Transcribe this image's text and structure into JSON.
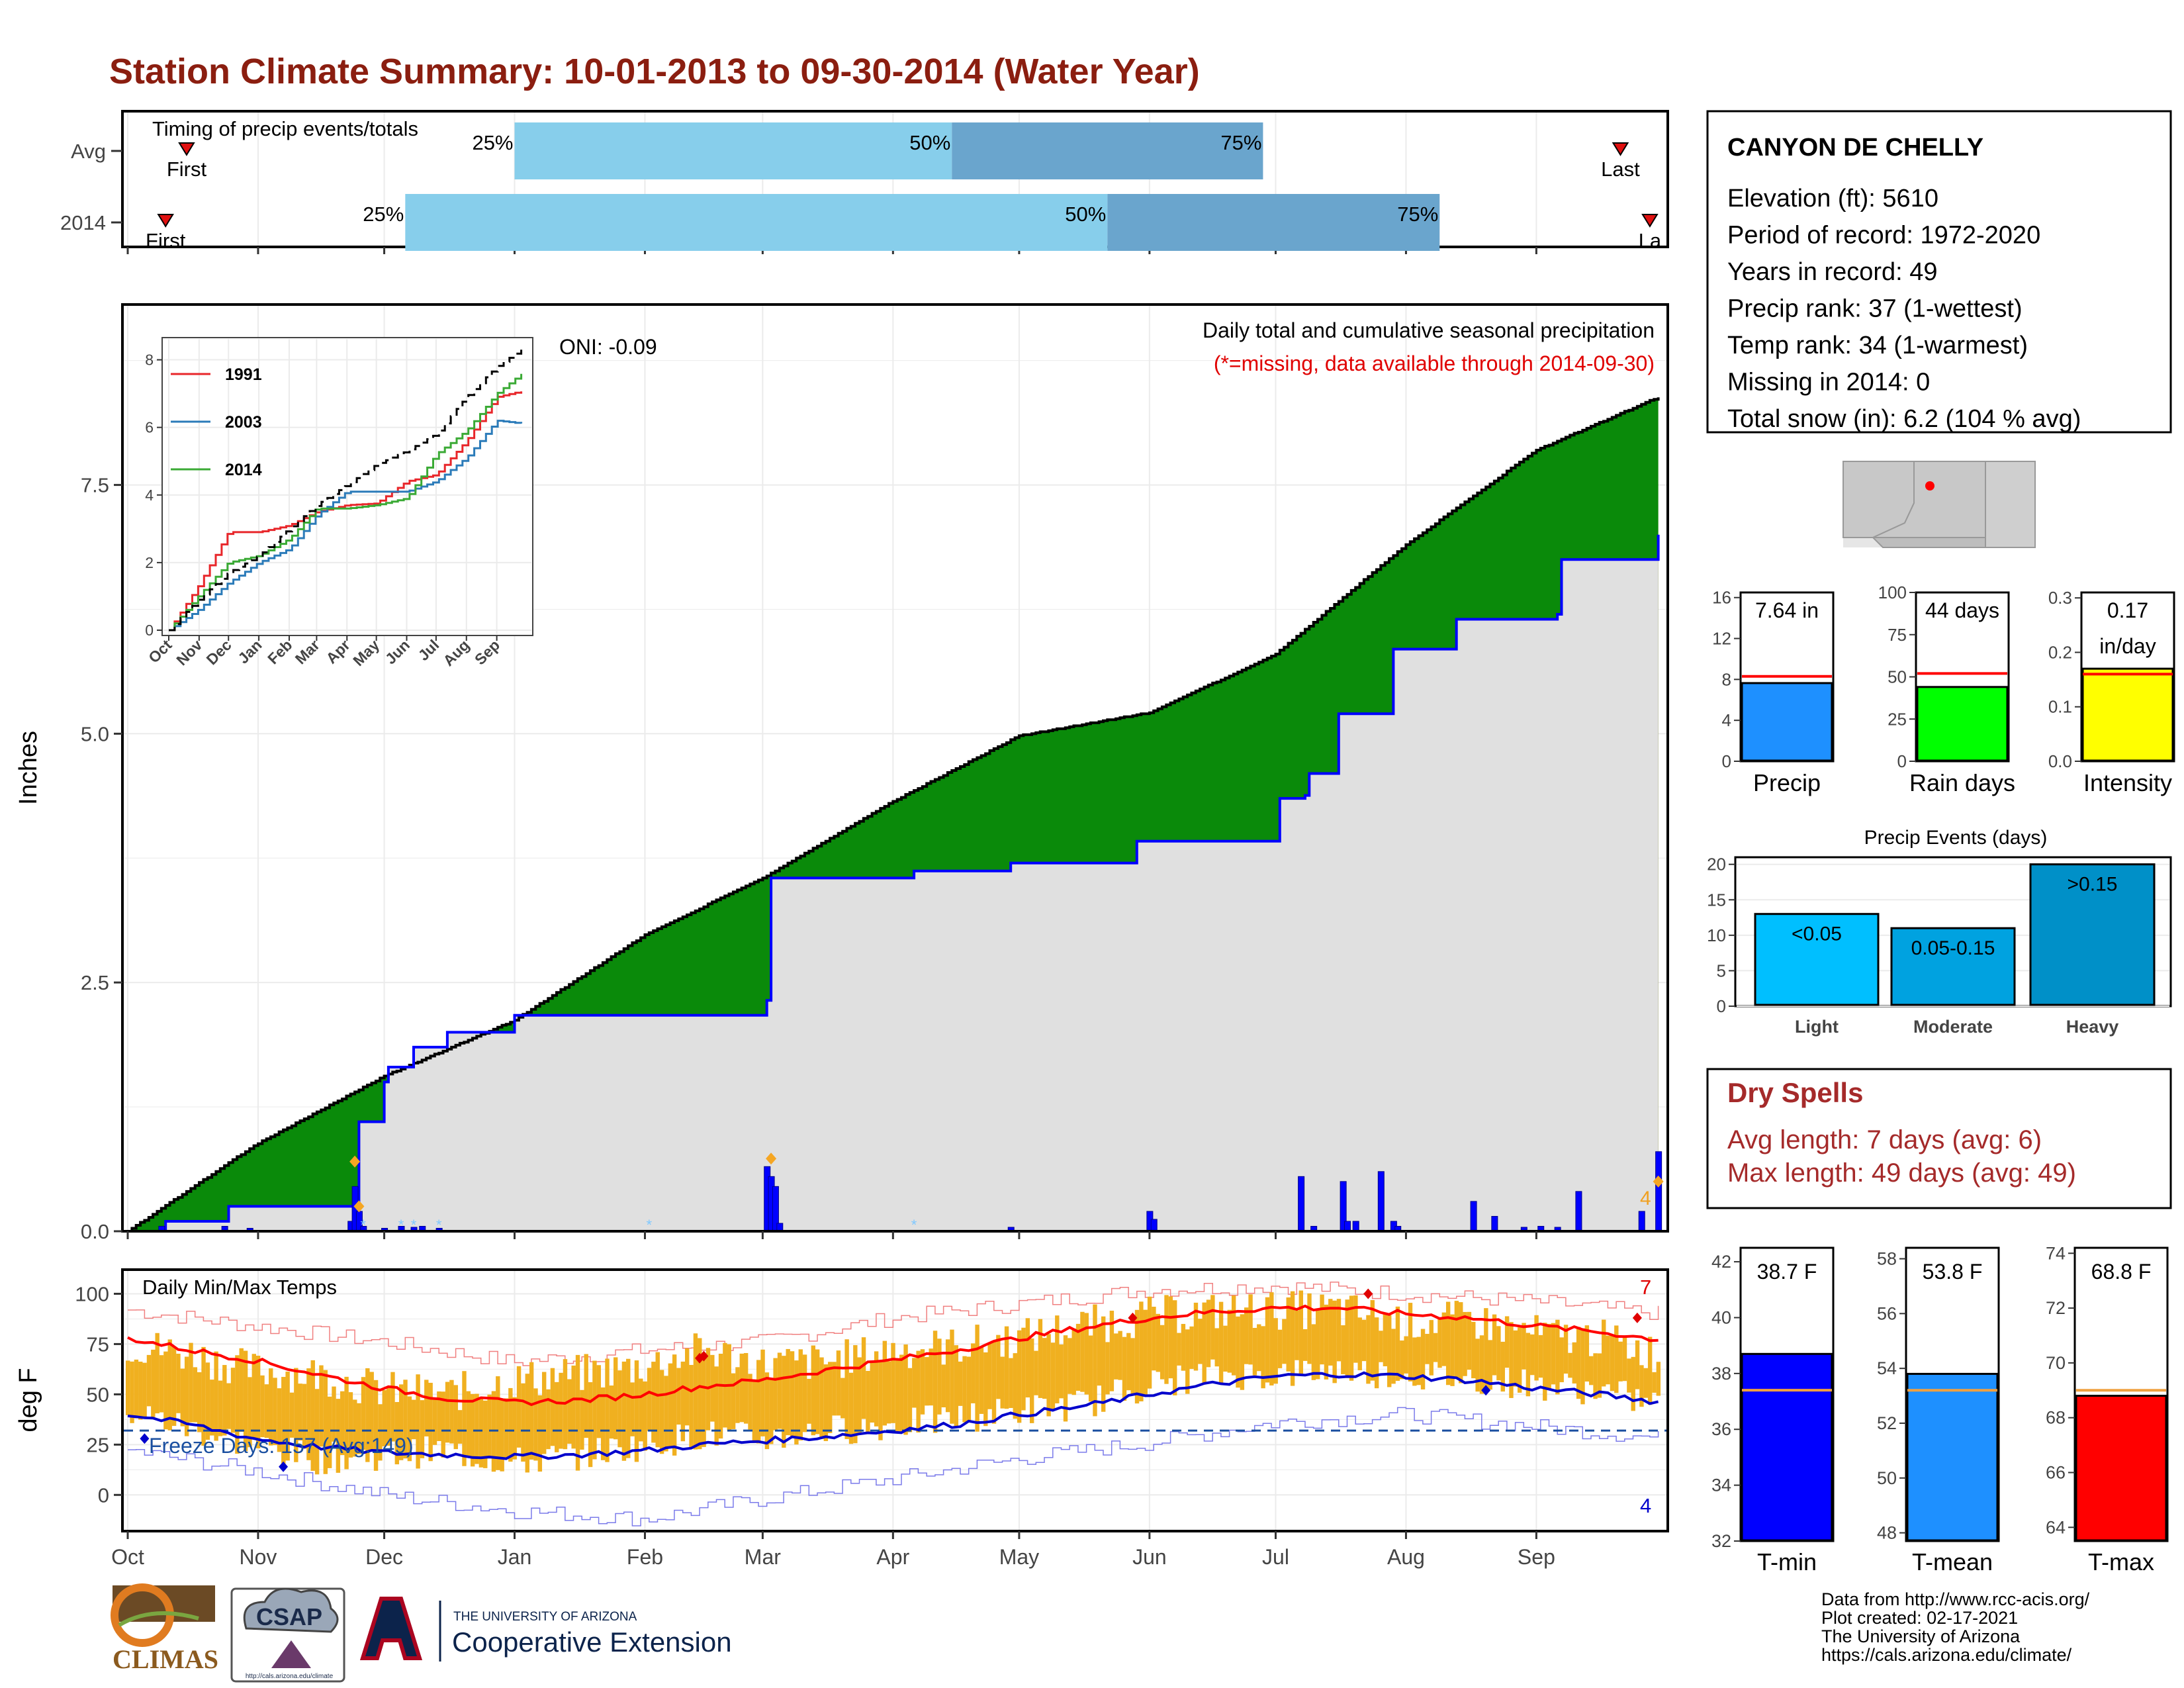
{
  "page": {
    "title": "Station Climate Summary: 10-01-2013 to 09-30-2014 (Water Year)"
  },
  "colors": {
    "title": "#8b1e10",
    "cum_avg_fill": "#8b5a00",
    "cum_surplus_fill": "#0a8a0a",
    "cum_below_fill": "#e0e0e0",
    "cum_line_2014": "#0000ff",
    "daily_bars": "#0000ff",
    "temp_range_bars": "#f0b020",
    "tmax_avg": "#ff0000",
    "tmin_avg": "#0000cc",
    "timing_light": "#87ceeb",
    "timing_dark": "#6aa5cd",
    "precip_bar": "#1e90ff",
    "raindays_bar": "#00ff00",
    "intensity_bar": "#ffff00",
    "events_light": "#00bfff",
    "events_moderate": "#00a2e0",
    "events_heavy": "#0090c8",
    "tmin_bar": "#0000ff",
    "tmean_bar": "#1e90ff",
    "tmax_bar": "#ff0000",
    "dry_spell_text": "#a52a2a"
  },
  "timing": {
    "title": "Timing of precip events/totals",
    "rows": [
      {
        "label": "Avg",
        "first": "First",
        "last": "Last",
        "p25_label": "25%",
        "p50_label": "50%",
        "p75_label": "75%",
        "first_day": 14,
        "p25_day": 92,
        "p50_day": 196,
        "p75_day": 270,
        "last_day": 355
      },
      {
        "label": "2014",
        "first": "First",
        "last": "La",
        "p25_label": "25%",
        "p50_label": "50%",
        "p75_label": "75%",
        "first_day": 9,
        "p25_day": 66,
        "p50_day": 233,
        "p75_day": 312,
        "last_day": 362
      }
    ]
  },
  "main": {
    "ylabel": "Inches",
    "y_ticks": [
      "0.0",
      "2.5",
      "5.0",
      "7.5"
    ],
    "top_note": "Daily total and cumulative seasonal precipitation",
    "missing_note": "(*=missing, data available through 2014-09-30)",
    "oni": "ONI: -0.09",
    "corner_count": "4"
  },
  "inset": {
    "y_ticks": [
      "0",
      "2",
      "4",
      "6",
      "8"
    ],
    "x_ticks": [
      "Oct",
      "Nov",
      "Dec",
      "Jan",
      "Feb",
      "Mar",
      "Apr",
      "May",
      "Jun",
      "Jul",
      "Aug",
      "Sep"
    ],
    "legend": [
      {
        "label": "1991",
        "color": "#e8262a"
      },
      {
        "label": "2003",
        "color": "#2b7bb9"
      },
      {
        "label": "2014",
        "color": "#3aaa35"
      }
    ]
  },
  "temps": {
    "ylabel": "deg F",
    "y_ticks": [
      "0",
      "25",
      "50",
      "75",
      "100"
    ],
    "panel_label": "Daily Min/Max Temps",
    "freeze_label": "Freeze Days: 157 (Avg:149)",
    "max_record_count": "7",
    "min_record_count": "4"
  },
  "x_months": [
    "Oct",
    "Nov",
    "Dec",
    "Jan",
    "Feb",
    "Mar",
    "Apr",
    "May",
    "Jun",
    "Jul",
    "Aug",
    "Sep"
  ],
  "station": {
    "name": "CANYON DE CHELLY",
    "lines": [
      "Elevation (ft): 5610",
      "Period of record: 1972-2020",
      "Years in record: 49",
      "Precip rank: 37 (1-wettest)",
      "Temp rank: 34 (1-warmest)",
      "Missing in 2014: 0",
      "Total snow (in): 6.2 (104 % avg)"
    ]
  },
  "summary_bars": [
    {
      "label": "Precip",
      "value_text": "7.64 in",
      "ticks": [
        "0",
        "4",
        "8",
        "12",
        "16"
      ]
    },
    {
      "label": "Rain days",
      "value_text": "44 days",
      "ticks": [
        "0",
        "25",
        "50",
        "75",
        "100"
      ]
    },
    {
      "label": "Intensity",
      "value_text": "0.17",
      "value_text2": "in/day",
      "ticks": [
        "0.0",
        "0.1",
        "0.2",
        "0.3"
      ]
    }
  ],
  "events": {
    "title": "Precip Events (days)",
    "ticks": [
      "0",
      "5",
      "10",
      "15",
      "20"
    ],
    "bars": [
      {
        "category": "Light",
        "label": "<0.05"
      },
      {
        "category": "Moderate",
        "label": "0.05-0.15"
      },
      {
        "category": "Heavy",
        "label": ">0.15"
      }
    ]
  },
  "dry_spells": {
    "title": "Dry Spells",
    "avg_line": "Avg length: 7 days (avg: 6)",
    "max_line": "Max length: 49 days (avg: 49)"
  },
  "temp_bars": [
    {
      "label": "T-min",
      "value_text": "38.7 F",
      "ticks": [
        "32",
        "34",
        "36",
        "38",
        "40",
        "42"
      ]
    },
    {
      "label": "T-mean",
      "value_text": "53.8 F",
      "ticks": [
        "48",
        "50",
        "52",
        "54",
        "56",
        "58"
      ]
    },
    {
      "label": "T-max",
      "value_text": "68.8 F",
      "ticks": [
        "64",
        "66",
        "68",
        "70",
        "72",
        "74"
      ]
    }
  ],
  "credits": [
    "Data from http://www.rcc-acis.org/",
    "Plot created: 02-17-2021",
    "The University of Arizona",
    "https://cals.arizona.edu/climate/"
  ],
  "logos": {
    "climas": "CLIMAS",
    "csap": "CSAP",
    "csap_url": "http://cals.arizona.edu/climate",
    "ua_small": "THE UNIVERSITY OF ARIZONA",
    "ua_big": "Cooperative Extension"
  },
  "chart_data": [
    {
      "type": "area",
      "name": "cumulative",
      "ylabel": "Inches",
      "ylim": [
        0,
        9.3
      ],
      "x_unit": "day of water year (0 = Oct 1)",
      "avg_cumulative": {
        "x": [
          0,
          30,
          61,
          92,
          123,
          151,
          182,
          212,
          243,
          273,
          304,
          335,
          365
        ],
        "y": [
          0.0,
          0.86,
          1.56,
          2.12,
          2.98,
          3.55,
          4.32,
          4.98,
          5.21,
          5.8,
          6.9,
          7.85,
          8.4
        ]
      },
      "cumulative_2014": {
        "x": [
          0,
          8,
          9,
          23,
          24,
          54,
          55,
          61,
          62,
          67,
          68,
          75,
          76,
          91,
          92,
          152,
          153,
          186,
          187,
          209,
          210,
          239,
          240,
          273,
          274,
          280,
          281,
          287,
          288,
          300,
          301,
          315,
          316,
          340,
          341,
          364,
          365
        ],
        "y": [
          0.0,
          0.0,
          0.1,
          0.1,
          0.25,
          0.25,
          1.1,
          1.5,
          1.65,
          1.65,
          1.85,
          1.85,
          2.0,
          2.0,
          2.17,
          2.32,
          3.55,
          3.55,
          3.62,
          3.62,
          3.7,
          3.7,
          3.92,
          3.92,
          4.35,
          4.38,
          4.6,
          4.6,
          5.2,
          5.2,
          5.85,
          5.85,
          6.15,
          6.2,
          6.75,
          7.0,
          7.64
        ]
      },
      "daily_precip": {
        "x": [
          8,
          23,
          29,
          53,
          54,
          55,
          56,
          61,
          65,
          68,
          70,
          74,
          152,
          153,
          154,
          155,
          210,
          243,
          244,
          279,
          282,
          289,
          290,
          292,
          298,
          301,
          302,
          320,
          325,
          332,
          336,
          340,
          345,
          360,
          364
        ],
        "y": [
          0.05,
          0.05,
          0.03,
          0.1,
          0.45,
          0.2,
          0.05,
          0.03,
          0.05,
          0.04,
          0.05,
          0.03,
          0.65,
          0.55,
          0.45,
          0.08,
          0.04,
          0.2,
          0.12,
          0.55,
          0.05,
          0.5,
          0.1,
          0.1,
          0.6,
          0.1,
          0.05,
          0.3,
          0.15,
          0.04,
          0.05,
          0.04,
          0.4,
          0.2,
          0.8
        ]
      }
    },
    {
      "type": "line",
      "name": "inset cumulative",
      "categories": [
        "Oct",
        "Nov",
        "Dec",
        "Jan",
        "Feb",
        "Mar",
        "Apr",
        "May",
        "Jun",
        "Jul",
        "Aug",
        "Sep"
      ],
      "ylim": [
        0,
        8.5
      ],
      "series": [
        {
          "name": "1991",
          "x": [
            0,
            30,
            61,
            92,
            123,
            151,
            182,
            212,
            243,
            273,
            304,
            335,
            365
          ],
          "y": [
            0,
            1.3,
            2.9,
            2.9,
            3.1,
            3.5,
            3.7,
            3.75,
            4.4,
            4.6,
            5.6,
            6.9,
            7.1
          ]
        },
        {
          "name": "2003",
          "x": [
            0,
            30,
            61,
            92,
            123,
            151,
            182,
            212,
            243,
            273,
            304,
            335,
            365
          ],
          "y": [
            0,
            0.6,
            1.4,
            2.0,
            2.4,
            3.4,
            4.1,
            4.1,
            4.1,
            4.4,
            5.1,
            6.2,
            6.1
          ]
        },
        {
          "name": "2014",
          "x": [
            0,
            30,
            61,
            92,
            123,
            151,
            182,
            212,
            243,
            273,
            304,
            335,
            365
          ],
          "y": [
            0,
            1.0,
            2.0,
            2.2,
            2.7,
            3.6,
            3.6,
            3.7,
            3.9,
            5.2,
            5.9,
            7.0,
            7.7
          ]
        },
        {
          "x": [
            0,
            30,
            61,
            92,
            123,
            151,
            182,
            212,
            243,
            273,
            304,
            335,
            365
          ],
          "y": [
            0,
            0.9,
            1.7,
            2.2,
            3.0,
            3.7,
            4.3,
            4.9,
            5.3,
            5.8,
            6.9,
            7.8,
            8.4
          ]
        }
      ]
    },
    {
      "type": "line",
      "name": "temperatures",
      "ylabel": "deg F",
      "ylim": [
        -18,
        112
      ],
      "freeze_line": 32,
      "tmax_avg": {
        "x": [
          0,
          15,
          30,
          45,
          61,
          76,
          92,
          107,
          123,
          137,
          151,
          166,
          182,
          197,
          212,
          227,
          243,
          258,
          273,
          288,
          304,
          319,
          335,
          350,
          365
        ],
        "y": [
          78,
          72,
          67,
          60,
          53,
          48,
          46,
          47,
          50,
          54,
          57,
          62,
          67,
          72,
          78,
          83,
          88,
          91,
          93,
          93,
          90,
          88,
          84,
          81,
          77
        ]
      },
      "tmin_avg": {
        "x": [
          0,
          15,
          30,
          45,
          61,
          76,
          92,
          107,
          123,
          137,
          151,
          166,
          182,
          197,
          212,
          227,
          243,
          258,
          273,
          288,
          304,
          319,
          335,
          350,
          365
        ],
        "y": [
          40,
          35,
          28,
          24,
          21,
          20,
          19,
          20,
          22,
          25,
          27,
          29,
          32,
          35,
          40,
          44,
          50,
          55,
          59,
          60,
          59,
          57,
          53,
          50,
          46
        ]
      },
      "record_high": {
        "x": [
          0,
          30,
          61,
          92,
          123,
          151,
          182,
          212,
          243,
          273,
          304,
          335,
          365
        ],
        "y": [
          92,
          84,
          76,
          66,
          72,
          76,
          88,
          95,
          102,
          104,
          100,
          96,
          90
        ]
      },
      "record_low": {
        "x": [
          0,
          30,
          61,
          92,
          123,
          151,
          182,
          212,
          243,
          273,
          304,
          335,
          365
        ],
        "y": [
          22,
          12,
          0,
          -8,
          -12,
          -2,
          8,
          18,
          26,
          36,
          40,
          34,
          28
        ]
      },
      "daily_max_2014": {
        "x": [
          0,
          15,
          30,
          45,
          61,
          76,
          92,
          107,
          123,
          137,
          151,
          166,
          182,
          197,
          212,
          227,
          243,
          258,
          273,
          288,
          304,
          319,
          335,
          350,
          364
        ],
        "y": [
          75,
          70,
          62,
          60,
          52,
          50,
          57,
          60,
          64,
          72,
          65,
          66,
          72,
          74,
          78,
          84,
          89,
          91,
          92,
          92,
          86,
          87,
          80,
          78,
          70
        ]
      },
      "daily_min_2014": {
        "x": [
          0,
          15,
          30,
          45,
          61,
          76,
          92,
          107,
          123,
          137,
          151,
          166,
          182,
          197,
          212,
          227,
          243,
          258,
          273,
          288,
          304,
          319,
          335,
          350,
          364
        ],
        "y": [
          42,
          33,
          25,
          18,
          20,
          22,
          16,
          20,
          25,
          30,
          28,
          32,
          35,
          38,
          42,
          45,
          55,
          60,
          60,
          62,
          60,
          58,
          55,
          52,
          45
        ]
      }
    },
    {
      "type": "bar",
      "name": "seasonal totals",
      "categories": [
        "Precip",
        "Rain days",
        "Intensity"
      ],
      "values": [
        7.64,
        44,
        0.17
      ],
      "averages": [
        8.3,
        52,
        0.16
      ],
      "ylims": [
        [
          0,
          16.5
        ],
        [
          0,
          100
        ],
        [
          0,
          0.31
        ]
      ]
    },
    {
      "type": "bar",
      "name": "precip events",
      "categories": [
        "Light",
        "Moderate",
        "Heavy"
      ],
      "values": [
        13,
        11,
        20
      ],
      "ylim": [
        0,
        21
      ]
    },
    {
      "type": "bar",
      "name": "seasonal temperature",
      "categories": [
        "T-min",
        "T-mean",
        "T-max"
      ],
      "values": [
        38.7,
        53.8,
        68.8
      ],
      "averages": [
        37.4,
        53.2,
        69.0
      ],
      "ylims": [
        [
          32,
          42.5
        ],
        [
          47.7,
          58.4
        ],
        [
          63.5,
          74.2
        ]
      ]
    }
  ]
}
